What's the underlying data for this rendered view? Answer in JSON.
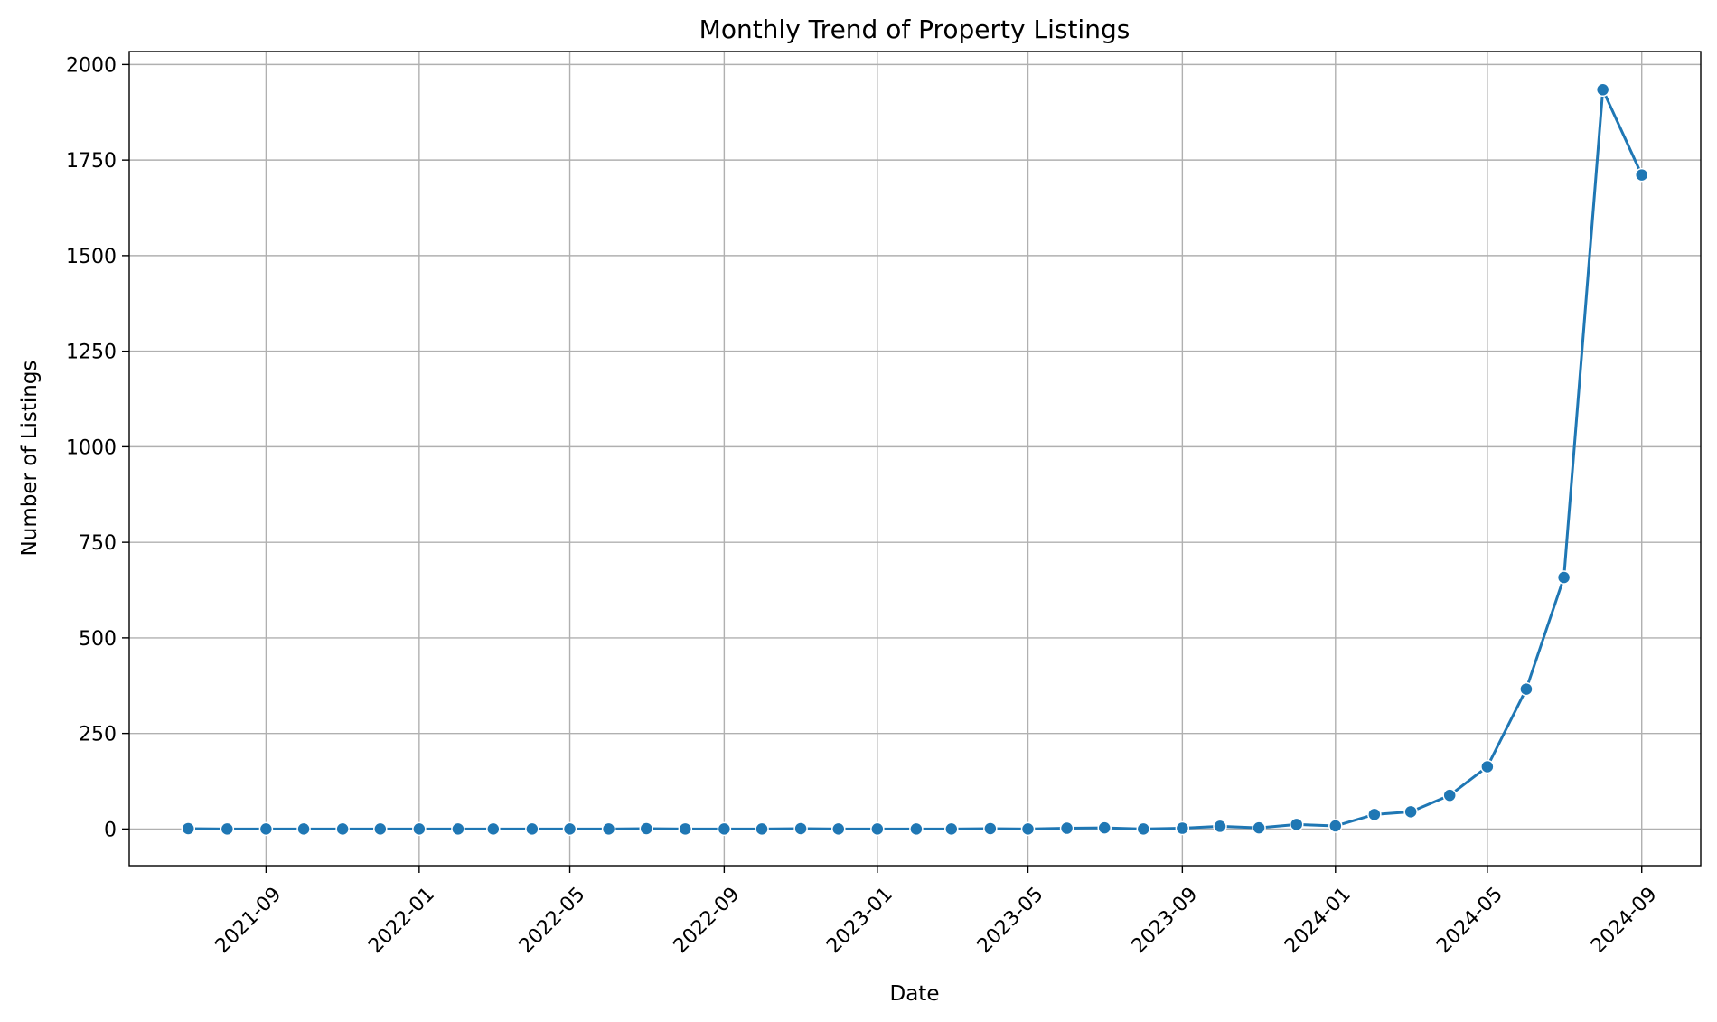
{
  "chart_data": {
    "type": "line",
    "title": "Monthly Trend of Property Listings",
    "xlabel": "Date",
    "ylabel": "Number of Listings",
    "xlim": [
      "2021-05-15",
      "2024-10-18"
    ],
    "ylim": [
      -96,
      2034
    ],
    "yticks": [
      0,
      250,
      500,
      750,
      1000,
      1250,
      1500,
      1750,
      2000
    ],
    "xticks": [
      "2021-09",
      "2022-01",
      "2022-05",
      "2022-09",
      "2023-01",
      "2023-05",
      "2023-09",
      "2024-01",
      "2024-05",
      "2024-09"
    ],
    "grid": true,
    "series": [
      {
        "color": "#1f77b4",
        "marker": "circle",
        "x": [
          "2021-07",
          "2021-08",
          "2021-09",
          "2021-10",
          "2021-11",
          "2021-12",
          "2022-01",
          "2022-02",
          "2022-03",
          "2022-04",
          "2022-05",
          "2022-06",
          "2022-07",
          "2022-08",
          "2022-09",
          "2022-10",
          "2022-11",
          "2022-12",
          "2023-01",
          "2023-02",
          "2023-03",
          "2023-04",
          "2023-05",
          "2023-06",
          "2023-07",
          "2023-08",
          "2023-09",
          "2023-10",
          "2023-11",
          "2023-12",
          "2024-01",
          "2024-02",
          "2024-03",
          "2024-04",
          "2024-05",
          "2024-06",
          "2024-07",
          "2024-08",
          "2024-09"
        ],
        "values": [
          1,
          0,
          0,
          0,
          0,
          0,
          0,
          0,
          0,
          0,
          0,
          0,
          1,
          0,
          0,
          0,
          1,
          0,
          0,
          0,
          0,
          1,
          0,
          2,
          3,
          0,
          2,
          7,
          3,
          12,
          8,
          38,
          45,
          88,
          163,
          366,
          658,
          1934,
          1711
        ]
      }
    ]
  }
}
